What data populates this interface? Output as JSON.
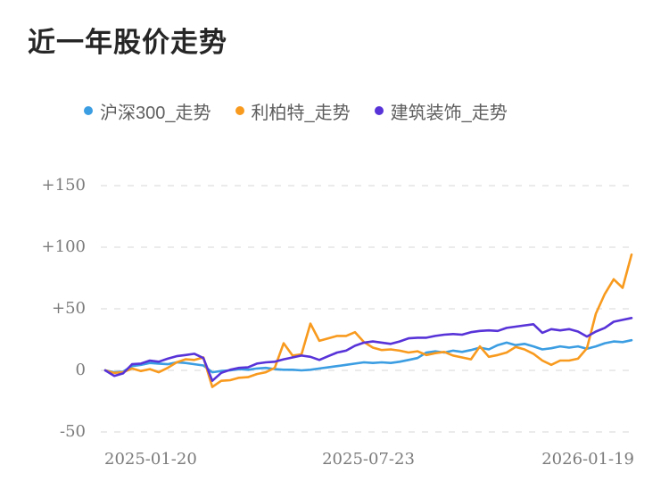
{
  "title": "近一年股价走势",
  "chart_data": {
    "type": "line",
    "title": "近一年股价走势",
    "xlabel": "",
    "ylabel": "",
    "ylim": [
      -50,
      150
    ],
    "grid": true,
    "grid_style": "dashed",
    "legend_position": "top",
    "x_range": [
      "2025-01-20",
      "2026-01-19"
    ],
    "x_tick_labels": [
      "2025-01-20",
      "2025-07-23",
      "2026-01-19"
    ],
    "y_ticks": [
      {
        "label": "+150",
        "value": 150
      },
      {
        "label": "+100",
        "value": 100
      },
      {
        "label": "+50",
        "value": 50
      },
      {
        "label": "0",
        "value": 0
      },
      {
        "label": "-50",
        "value": -50
      }
    ],
    "unit": "percent_change",
    "series": [
      {
        "name": "沪深300_走势",
        "color": "#3B9DE2",
        "values": [
          0,
          -1.5,
          -1,
          3.5,
          4.5,
          6,
          5.5,
          5,
          6.5,
          6,
          5,
          4,
          -1.5,
          -0.5,
          0,
          1,
          0.5,
          1.5,
          2,
          1,
          0.5,
          0.5,
          0,
          0.5,
          1.5,
          2.5,
          3.5,
          4.5,
          5.5,
          6.5,
          6,
          6.5,
          6,
          7,
          8.5,
          10,
          14.5,
          15.5,
          14.5,
          16,
          15,
          16.5,
          18.5,
          17,
          20.5,
          22.5,
          20.5,
          21.5,
          19.5,
          17,
          18,
          19.5,
          18.5,
          19.5,
          17.5,
          19.5,
          22,
          23.5,
          23,
          24.5
        ]
      },
      {
        "name": "利柏特_走势",
        "color": "#F89A1E",
        "values": [
          0,
          -2,
          -1.5,
          1.5,
          -0.5,
          1,
          -1.5,
          2,
          6.5,
          9,
          8.5,
          10.5,
          -13.5,
          -8.5,
          -8,
          -6,
          -5.5,
          -3,
          -1.5,
          2,
          22,
          12,
          13,
          38,
          24,
          26,
          28,
          28,
          31,
          23,
          18.5,
          16.5,
          17,
          16,
          14.5,
          15.5,
          12.5,
          14,
          15,
          12,
          10.5,
          9,
          19.5,
          11,
          12.5,
          14.5,
          19,
          17,
          13.5,
          8,
          4.5,
          8,
          8,
          9.5,
          18,
          46,
          62,
          74,
          67,
          94
        ]
      },
      {
        "name": "建筑装饰_走势",
        "color": "#5733D8",
        "values": [
          0,
          -4.5,
          -2.5,
          5,
          5.5,
          8,
          7,
          9.5,
          11.5,
          12.5,
          13.5,
          10,
          -8.5,
          -2,
          0.5,
          2,
          2.5,
          5.5,
          6.5,
          7,
          9,
          10.5,
          12,
          11,
          8.5,
          11.5,
          14.5,
          16,
          20,
          22.5,
          23.5,
          22.5,
          21.5,
          23.5,
          26,
          26.5,
          26.5,
          28,
          29,
          29.5,
          29,
          31,
          32,
          32.5,
          32,
          34.5,
          35.5,
          36.5,
          37.5,
          30.5,
          33.5,
          32.5,
          33.5,
          31.5,
          27.5,
          31.5,
          34.5,
          39.5,
          41,
          42.5
        ]
      }
    ],
    "grid_color": "#ebebeb"
  }
}
